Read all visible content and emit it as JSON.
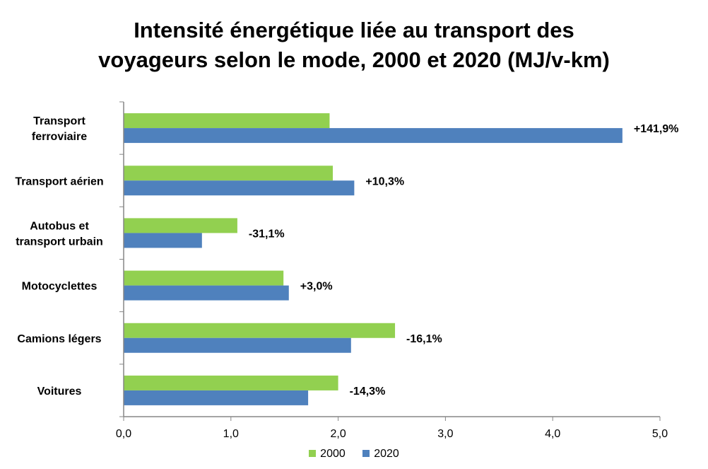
{
  "chart_data": {
    "type": "bar",
    "orientation": "horizontal",
    "title": [
      "Intensité énergétique liée au transport des",
      "voyageurs selon le mode, 2000 et 2020 (MJ/v-km)"
    ],
    "categories": [
      [
        "Transport",
        "ferroviaire"
      ],
      [
        "Transport aérien"
      ],
      [
        "Autobus et",
        "transport urbain"
      ],
      [
        "Motocyclettes"
      ],
      [
        "Camions légers"
      ],
      [
        "Voitures"
      ]
    ],
    "series": [
      {
        "name": "2000",
        "color": "#92D050",
        "values": [
          1.92,
          1.95,
          1.06,
          1.49,
          2.53,
          2.0
        ]
      },
      {
        "name": "2020",
        "color": "#4F81BD",
        "values": [
          4.65,
          2.15,
          0.73,
          1.54,
          2.12,
          1.72
        ]
      }
    ],
    "data_labels": [
      "+141,9%",
      "+10,3%",
      "-31,1%",
      "+3,0%",
      "-16,1%",
      "-14,3%"
    ],
    "xlim": [
      0,
      5
    ],
    "x_ticks": [
      "0,0",
      "1,0",
      "2,0",
      "3,0",
      "4,0",
      "5,0"
    ],
    "grid": false,
    "legend_position": "bottom"
  }
}
